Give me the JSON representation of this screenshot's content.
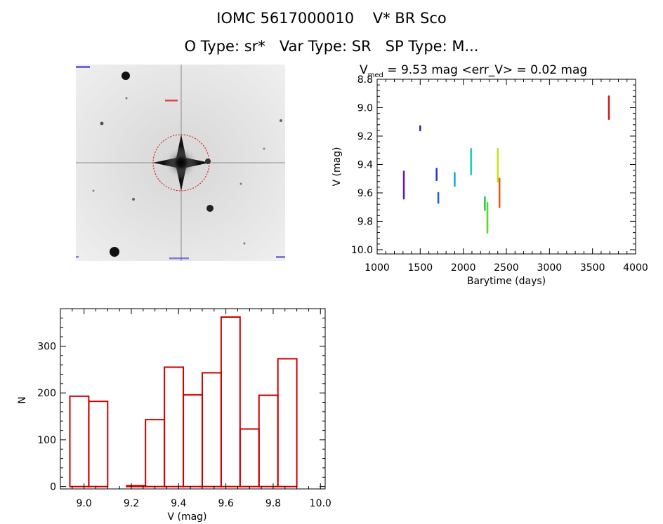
{
  "header": {
    "title": "IOMC 5617000010    V* BR Sco",
    "subtitle": "O Type: sr*   Var Type: SR   SP Type: M..."
  },
  "stats": {
    "vmed_label": "V",
    "vmed_sub": "med",
    "vmed_text": " = 9.53 mag <err_V> = 0.02 mag"
  },
  "colors": {
    "hist": "#cc0000",
    "circle": "#dd0000"
  },
  "chart_data": [
    {
      "type": "scatter",
      "name": "light-curve",
      "xlabel": "Barytime (days)",
      "ylabel": "V (mag)",
      "xlim": [
        1000,
        4000
      ],
      "ylim": [
        10.03,
        8.8
      ],
      "xticks": [
        1000,
        1500,
        2000,
        2500,
        3000,
        3500,
        4000
      ],
      "yticks": [
        8.8,
        9.0,
        9.2,
        9.4,
        9.6,
        9.8,
        10.0
      ],
      "segments": [
        {
          "x": 1310,
          "y1": 9.45,
          "y2": 9.64,
          "color": "#6a1aa8"
        },
        {
          "x": 1500,
          "y1": 9.13,
          "y2": 9.16,
          "color": "#3a1fb8"
        },
        {
          "x": 1690,
          "y1": 9.43,
          "y2": 9.51,
          "color": "#2a3ad0"
        },
        {
          "x": 1710,
          "y1": 9.6,
          "y2": 9.67,
          "color": "#2266cc"
        },
        {
          "x": 1900,
          "y1": 9.46,
          "y2": 9.55,
          "color": "#1aa6dd"
        },
        {
          "x": 2090,
          "y1": 9.29,
          "y2": 9.47,
          "color": "#1ad0c0"
        },
        {
          "x": 2250,
          "y1": 9.63,
          "y2": 9.72,
          "color": "#22cc55"
        },
        {
          "x": 2280,
          "y1": 9.67,
          "y2": 9.88,
          "color": "#55dd22"
        },
        {
          "x": 2400,
          "y1": 9.29,
          "y2": 9.52,
          "color": "#c8e020"
        },
        {
          "x": 2420,
          "y1": 9.5,
          "y2": 9.7,
          "color": "#e06018"
        },
        {
          "x": 3690,
          "y1": 8.92,
          "y2": 9.08,
          "color": "#cc1a1a"
        }
      ]
    },
    {
      "type": "bar",
      "name": "histogram",
      "xlabel": "V (mag)",
      "ylabel": "N",
      "xlim": [
        8.9,
        10.02
      ],
      "ylim": [
        -5,
        380
      ],
      "xticks": [
        9.0,
        9.2,
        9.4,
        9.6,
        9.8,
        10.0
      ],
      "yticks": [
        0,
        100,
        200,
        300
      ],
      "bin_edges": [
        8.94,
        9.02,
        9.1,
        9.18,
        9.26,
        9.34,
        9.42,
        9.5,
        9.58,
        9.66,
        9.74,
        9.82,
        9.9
      ],
      "values": [
        193,
        182,
        0,
        2,
        143,
        255,
        196,
        243,
        362,
        123,
        195,
        273,
        5
      ]
    }
  ]
}
